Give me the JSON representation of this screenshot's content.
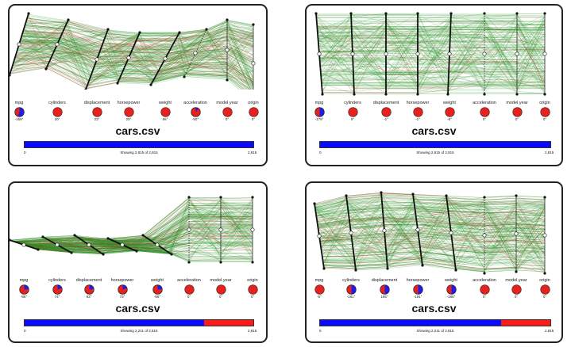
{
  "colors": {
    "line_green": "#1f8f1f",
    "line_red": "#c0392b",
    "bar_blue": "#0a0aff",
    "bar_red": "#ff1a1a",
    "dial_red": "#e8211d",
    "dial_blue": "#1e1ee6"
  },
  "axis_labels": [
    "mpg",
    "cylinders",
    "displacement",
    "horsepower",
    "weight",
    "acceleration",
    "model.year",
    "origin"
  ],
  "panels": [
    {
      "title": "cars.csv",
      "angles": [
        "-159°",
        "20°",
        "23°",
        "29°",
        "55°",
        "-50°",
        "0°",
        "0°"
      ],
      "dial_fraction": [
        0.56,
        0.0,
        0.0,
        0.0,
        0.0,
        0.1,
        0.0,
        0.0
      ],
      "range_min": "0",
      "range_max": "2,815",
      "showing": "Showing 2,815 of 2,815",
      "filter_fraction": 1.0
    },
    {
      "title": "cars.csv",
      "angles": [
        "-179°",
        "9°",
        "-1°",
        "-1°",
        "-5°",
        "0°",
        "0°",
        "0°"
      ],
      "dial_fraction": [
        0.5,
        0.0,
        0.0,
        0.0,
        0.0,
        0.0,
        0.0,
        0.0
      ],
      "range_min": "0",
      "range_max": "2,815",
      "showing": "Showing 2,815 of 2,815",
      "filter_fraction": 1.0
    },
    {
      "title": "cars.csv",
      "angles": [
        "-86°",
        "74°",
        "83°",
        "73°",
        "-86°",
        "0°",
        "0°",
        "0°"
      ],
      "dial_fraction": [
        0.24,
        0.2,
        0.23,
        0.2,
        0.24,
        0.0,
        0.0,
        0.0
      ],
      "range_min": "0",
      "range_max": "2,815",
      "showing": "Showing 2,211 of 2,815",
      "filter_fraction": 0.785
    },
    {
      "title": "cars.csv",
      "angles": [
        "-5°",
        "-181°",
        "185°",
        "-191°",
        "-186°",
        "0°",
        "0°",
        "0°"
      ],
      "dial_fraction": [
        0.0,
        0.5,
        0.5,
        0.5,
        0.5,
        0.0,
        0.0,
        0.0
      ],
      "range_min": "0",
      "range_max": "2,815",
      "showing": "Showing 2,211 of 2,815",
      "filter_fraction": 0.785
    }
  ]
}
